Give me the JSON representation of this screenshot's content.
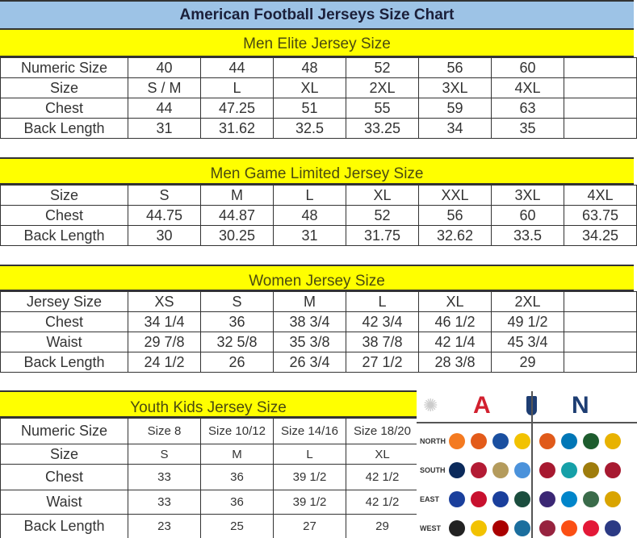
{
  "title": "American Football Jerseys Size Chart",
  "men_elite": {
    "heading": "Men Elite Jersey Size",
    "rows": [
      [
        "Numeric Size",
        "40",
        "44",
        "48",
        "52",
        "56",
        "60",
        ""
      ],
      [
        "Size",
        "S / M",
        "L",
        "XL",
        "2XL",
        "3XL",
        "4XL",
        ""
      ],
      [
        "Chest",
        "44",
        "47.25",
        "51",
        "55",
        "59",
        "63",
        ""
      ],
      [
        "Back Length",
        "31",
        "31.62",
        "32.5",
        "33.25",
        "34",
        "35",
        ""
      ]
    ]
  },
  "men_game": {
    "heading": "Men Game Limited Jersey Size",
    "rows": [
      [
        "Size",
        "S",
        "M",
        "L",
        "XL",
        "XXL",
        "3XL",
        "4XL"
      ],
      [
        "Chest",
        "44.75",
        "44.87",
        "48",
        "52",
        "56",
        "60",
        "63.75"
      ],
      [
        "Back Length",
        "30",
        "30.25",
        "31",
        "31.75",
        "32.62",
        "33.5",
        "34.25"
      ]
    ]
  },
  "women": {
    "heading": "Women Jersey Size",
    "rows": [
      [
        "Jersey Size",
        "XS",
        "S",
        "M",
        "L",
        "XL",
        "2XL",
        ""
      ],
      [
        "Chest",
        "34 1/4",
        "36",
        "38 3/4",
        "42 3/4",
        "46 1/2",
        "49 1/2",
        ""
      ],
      [
        "Waist",
        "29 7/8",
        "32 5/8",
        "35 3/8",
        "38 7/8",
        "42 1/4",
        "45 3/4",
        ""
      ],
      [
        "Back Length",
        "24 1/2",
        "26",
        "26 3/4",
        "27 1/2",
        "28 3/8",
        "29",
        ""
      ]
    ]
  },
  "youth": {
    "heading": "Youth Kids Jersey Size",
    "rows": [
      [
        "Numeric Size",
        "Size 8",
        "Size 10/12",
        "Size 14/16",
        "Size 18/20"
      ],
      [
        "Size",
        "S",
        "M",
        "L",
        "XL"
      ],
      [
        "Chest",
        "33",
        "36",
        "39 1/2",
        "42 1/2"
      ],
      [
        "Waist",
        "33",
        "36",
        "39 1/2",
        "42 1/2"
      ],
      [
        "Back Length",
        "23",
        "25",
        "27",
        "29"
      ]
    ]
  },
  "logos": {
    "afc_letter": "A",
    "nfc_letter": "N",
    "afc_color": "#d2202f",
    "nfc_color": "#1d3d72",
    "divisions": [
      "NORTH",
      "SOUTH",
      "EAST",
      "WEST"
    ],
    "afc_colors": [
      [
        "#f47a20",
        "#e35b1a",
        "#1a4fa0",
        "#f2c200"
      ],
      [
        "#0b2a5b",
        "#b31b34",
        "#b49b5c",
        "#4b92db"
      ],
      [
        "#1a3f9c",
        "#c8102e",
        "#1a3f9c",
        "#1b4d3e"
      ],
      [
        "#222222",
        "#f2c200",
        "#aa0000",
        "#1b6e9e"
      ]
    ],
    "nfc_colors": [
      [
        "#e05a1a",
        "#0076b6",
        "#1d5c2e",
        "#e8b200"
      ],
      [
        "#a71930",
        "#16a0a8",
        "#9e7c0c",
        "#a71930"
      ],
      [
        "#3b2774",
        "#0085ca",
        "#3a6b4a",
        "#d9a400"
      ],
      [
        "#97233f",
        "#fb4f14",
        "#e31837",
        "#2b3a84"
      ]
    ]
  }
}
